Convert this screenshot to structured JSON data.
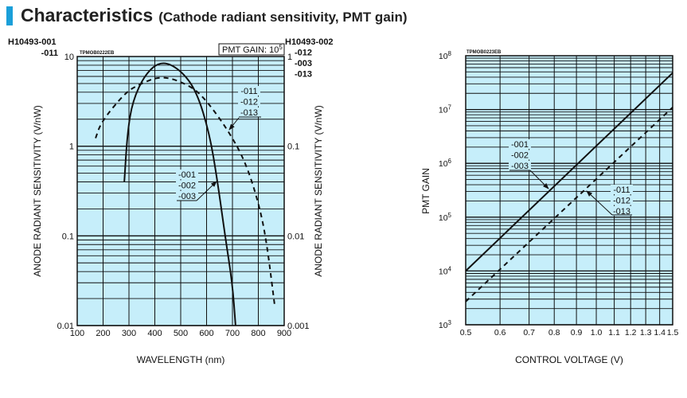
{
  "title": {
    "main": "Characteristics",
    "sub": "(Cathode radiant sensitivity, PMT gain)"
  },
  "colors": {
    "accent": "#1a9fd9",
    "plot_bg": "#c6eefa",
    "line": "#111111"
  },
  "chart_data": [
    {
      "type": "line",
      "code": "TPMOB0222EB",
      "xlabel": "WAVELENGTH (nm)",
      "ylabel_left": "ANODE RADIANT SENSITIVITY (V/nW)",
      "ylabel_right": "ANODE RADIANT SENSITIVITY (V/nW)",
      "xlim": [
        100,
        900
      ],
      "ylim_left": [
        0.01,
        10
      ],
      "ylim_right": [
        0.001,
        1
      ],
      "yscale": "log",
      "grid": true,
      "x_ticks": [
        "100",
        "200",
        "300",
        "400",
        "500",
        "600",
        "700",
        "800",
        "900"
      ],
      "y_ticks_left": [
        "0.01",
        "0.1",
        "1",
        "10"
      ],
      "y_ticks_right": [
        "0.001",
        "0.01",
        "0.1",
        "1"
      ],
      "left_header": [
        "H10493-001",
        "-011"
      ],
      "right_header": [
        "H10493-002",
        "-012",
        "-003",
        "-013"
      ],
      "annotation": {
        "text": "PMT GAIN: 10",
        "sup": "5"
      },
      "series": [
        {
          "name": "-001 / -002 / -003",
          "labels": [
            "-001",
            "-002",
            "-003"
          ],
          "style": "solid",
          "axis": "left",
          "x": [
            282,
            294,
            314,
            363,
            425,
            497,
            560,
            611,
            642,
            672,
            700,
            712
          ],
          "y": [
            0.4,
            1.4,
            3.2,
            6.4,
            9.0,
            7.2,
            4.2,
            1.4,
            0.41,
            0.098,
            0.029,
            0.01
          ]
        },
        {
          "name": "-011 / -012 / -013",
          "labels": [
            "-011",
            "-012",
            "-013"
          ],
          "style": "dashed",
          "axis": "right",
          "x": [
            171,
            193,
            284,
            333,
            429,
            540,
            601,
            683,
            746,
            795,
            829,
            863
          ],
          "y": [
            0.123,
            0.187,
            0.39,
            0.48,
            0.62,
            0.47,
            0.32,
            0.15,
            0.071,
            0.027,
            0.01,
            0.0017
          ]
        }
      ]
    },
    {
      "type": "line",
      "code": "TPMOB0223EB",
      "xlabel": "CONTROL VOLTAGE (V)",
      "ylabel": "PMT GAIN",
      "xlim": [
        0.5,
        1.5
      ],
      "ylim": [
        1000,
        100000000
      ],
      "xscale": "log",
      "yscale": "log",
      "grid": true,
      "x_ticks": [
        "0.5",
        "0.6",
        "0.7",
        "0.8",
        "0.9",
        "1.0",
        "1.1",
        "1.2",
        "1.3",
        "1.4",
        "1.5"
      ],
      "y_ticks": [
        {
          "base": "10",
          "exp": "3"
        },
        {
          "base": "10",
          "exp": "4"
        },
        {
          "base": "10",
          "exp": "5"
        },
        {
          "base": "10",
          "exp": "6"
        },
        {
          "base": "10",
          "exp": "7"
        },
        {
          "base": "10",
          "exp": "8"
        }
      ],
      "series": [
        {
          "name": "-001 / -002 / -003",
          "labels": [
            "-001",
            "-002",
            "-003"
          ],
          "style": "solid",
          "x": [
            0.5,
            1.5
          ],
          "y": [
            10000,
            48000000
          ]
        },
        {
          "name": "-011 / -012 / -013",
          "labels": [
            "-011",
            "-012",
            "-013"
          ],
          "style": "dashed",
          "x": [
            0.5,
            1.5
          ],
          "y": [
            2700,
            11000000
          ]
        }
      ]
    }
  ]
}
